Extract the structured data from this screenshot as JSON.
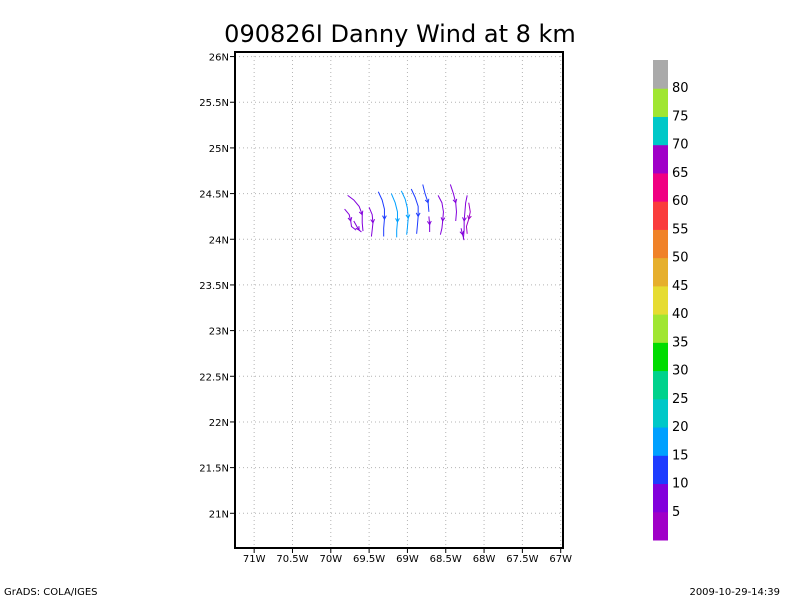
{
  "chart_data": {
    "type": "streamline",
    "title": "090826I Danny Wind at 8 km",
    "xlabel": "",
    "ylabel": "",
    "xlim": [
      -71.25,
      -66.97
    ],
    "ylim": [
      20.62,
      26.05
    ],
    "x_ticks": [
      -71,
      -70.5,
      -70,
      -69.5,
      -69,
      -68.5,
      -68,
      -67.5,
      -67
    ],
    "x_tick_labels": [
      "71W",
      "70.5W",
      "70W",
      "69.5W",
      "69W",
      "68.5W",
      "68W",
      "67.5W",
      "67W"
    ],
    "y_ticks": [
      21,
      21.5,
      22,
      22.5,
      23,
      23.5,
      24,
      24.5,
      25,
      25.5,
      26
    ],
    "y_tick_labels": [
      "21N",
      "21.5N",
      "22N",
      "22.5N",
      "23N",
      "23.5N",
      "24N",
      "24.5N",
      "25N",
      "25.5N",
      "26N"
    ],
    "grid": true,
    "colorbar": {
      "position": "right",
      "labels": [
        "5",
        "10",
        "15",
        "20",
        "25",
        "30",
        "35",
        "40",
        "45",
        "50",
        "55",
        "60",
        "65",
        "70",
        "75",
        "80"
      ],
      "colors": [
        "#a000c8",
        "#8200dc",
        "#1e3cff",
        "#00a0ff",
        "#00c8c8",
        "#00d28c",
        "#00dc00",
        "#a0e632",
        "#e6dc32",
        "#e6af2d",
        "#f08228",
        "#fa3c3c",
        "#f00082",
        "#a000c8",
        "#00c8c8",
        "#a0e632",
        "#aaaaaa"
      ]
    },
    "streamlines": [
      {
        "speed": 7,
        "points": [
          [
            -69.78,
            24.48
          ],
          [
            -69.7,
            24.43
          ],
          [
            -69.63,
            24.36
          ],
          [
            -69.59,
            24.27
          ],
          [
            -69.59,
            24.18
          ],
          [
            -69.58,
            24.09
          ]
        ]
      },
      {
        "speed": 5,
        "points": [
          [
            -69.82,
            24.33
          ],
          [
            -69.76,
            24.27
          ],
          [
            -69.74,
            24.2
          ],
          [
            -69.73,
            24.14
          ],
          [
            -69.67,
            24.1
          ]
        ]
      },
      {
        "speed": 6,
        "points": [
          [
            -69.7,
            24.2
          ],
          [
            -69.66,
            24.14
          ],
          [
            -69.63,
            24.1
          ],
          [
            -69.6,
            24.08
          ]
        ]
      },
      {
        "speed": 8,
        "points": [
          [
            -69.5,
            24.35
          ],
          [
            -69.46,
            24.27
          ],
          [
            -69.45,
            24.18
          ],
          [
            -69.46,
            24.1
          ],
          [
            -69.47,
            24.03
          ]
        ]
      },
      {
        "speed": 12,
        "points": [
          [
            -69.38,
            24.52
          ],
          [
            -69.33,
            24.43
          ],
          [
            -69.3,
            24.33
          ],
          [
            -69.3,
            24.22
          ],
          [
            -69.31,
            24.12
          ],
          [
            -69.31,
            24.03
          ]
        ]
      },
      {
        "speed": 16,
        "points": [
          [
            -69.21,
            24.5
          ],
          [
            -69.16,
            24.4
          ],
          [
            -69.13,
            24.3
          ],
          [
            -69.13,
            24.19
          ],
          [
            -69.14,
            24.1
          ],
          [
            -69.14,
            24.02
          ]
        ]
      },
      {
        "speed": 19,
        "points": [
          [
            -69.08,
            24.53
          ],
          [
            -69.03,
            24.44
          ],
          [
            -69.0,
            24.34
          ],
          [
            -68.99,
            24.23
          ],
          [
            -69.0,
            24.13
          ],
          [
            -69.01,
            24.05
          ]
        ]
      },
      {
        "speed": 14,
        "points": [
          [
            -68.95,
            24.55
          ],
          [
            -68.9,
            24.46
          ],
          [
            -68.86,
            24.36
          ],
          [
            -68.86,
            24.25
          ],
          [
            -68.87,
            24.15
          ],
          [
            -68.88,
            24.06
          ]
        ]
      },
      {
        "speed": 11,
        "points": [
          [
            -68.8,
            24.6
          ],
          [
            -68.77,
            24.5
          ],
          [
            -68.73,
            24.4
          ],
          [
            -68.72,
            24.3
          ]
        ]
      },
      {
        "speed": 9,
        "points": [
          [
            -68.72,
            24.25
          ],
          [
            -68.71,
            24.16
          ],
          [
            -68.71,
            24.08
          ]
        ]
      },
      {
        "speed": 7,
        "points": [
          [
            -68.6,
            24.48
          ],
          [
            -68.55,
            24.4
          ],
          [
            -68.53,
            24.3
          ],
          [
            -68.54,
            24.2
          ],
          [
            -68.55,
            24.12
          ],
          [
            -68.57,
            24.05
          ]
        ]
      },
      {
        "speed": 6,
        "points": [
          [
            -68.44,
            24.6
          ],
          [
            -68.4,
            24.5
          ],
          [
            -68.37,
            24.4
          ],
          [
            -68.36,
            24.3
          ],
          [
            -68.37,
            24.2
          ]
        ]
      },
      {
        "speed": 5,
        "points": [
          [
            -68.22,
            24.48
          ],
          [
            -68.24,
            24.4
          ],
          [
            -68.25,
            24.3
          ],
          [
            -68.26,
            24.2
          ],
          [
            -68.26,
            24.1
          ],
          [
            -68.27,
            24.0
          ]
        ]
      },
      {
        "speed": 4,
        "points": [
          [
            -68.2,
            24.4
          ],
          [
            -68.18,
            24.3
          ],
          [
            -68.2,
            24.22
          ],
          [
            -68.23,
            24.14
          ],
          [
            -68.22,
            24.06
          ]
        ]
      },
      {
        "speed": 5,
        "points": [
          [
            -68.3,
            24.12
          ],
          [
            -68.28,
            24.05
          ],
          [
            -68.26,
            23.99
          ]
        ]
      }
    ]
  },
  "footer": {
    "left": "GrADS: COLA/IGES",
    "right": "2009-10-29-14:39"
  }
}
